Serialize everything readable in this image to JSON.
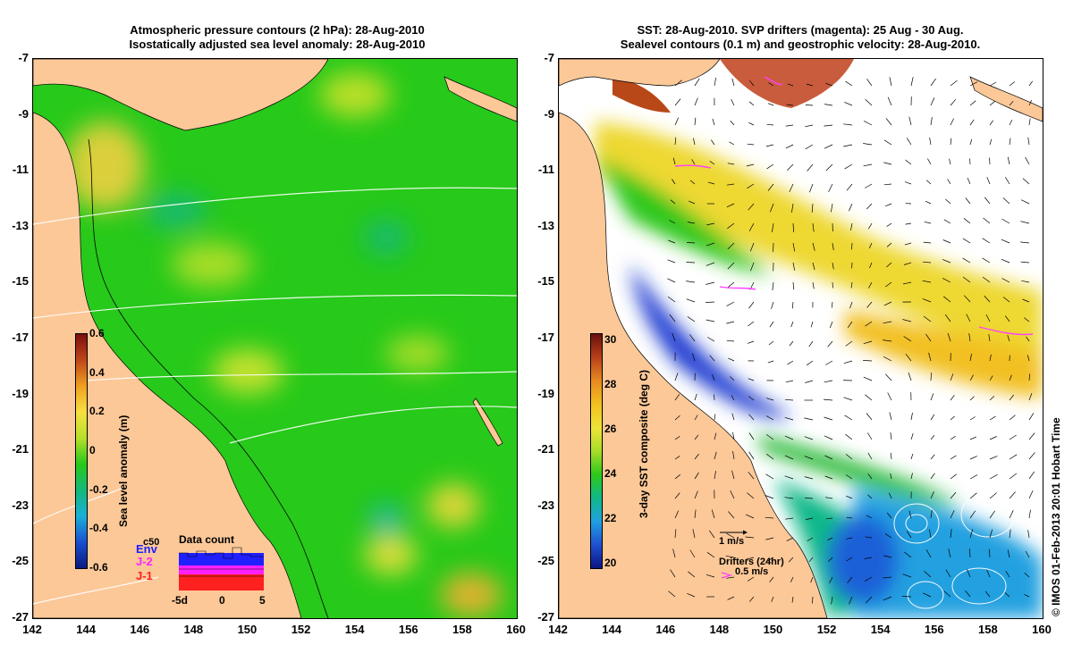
{
  "left_panel": {
    "title_line1": "Atmospheric pressure contours (2 hPa): 28-Aug-2010",
    "title_line2": "Isostatically adjusted sea level anomaly: 28-Aug-2010",
    "colorbar": {
      "label": "Sea level anomaly (m)",
      "ticks": [
        "0.6",
        "0.4",
        "0.2",
        "0",
        "-0.2",
        "-0.4",
        "-0.6"
      ],
      "colors": [
        "#7a0f0f",
        "#c0461a",
        "#f0a020",
        "#f7e040",
        "#b6e02a",
        "#27c91a",
        "#14b87a",
        "#1ab0d8",
        "#1a4fd0",
        "#0a1a80"
      ]
    },
    "data_count": {
      "title": "Data count",
      "series": [
        {
          "name": "Env",
          "color": "#2020ff"
        },
        {
          "name": "J-2",
          "color": "#ff20ff"
        },
        {
          "name": "J-1",
          "color": "#ff2020"
        }
      ],
      "x_ticks": [
        "-5d",
        "0",
        "5"
      ],
      "extra_label": "c50"
    }
  },
  "right_panel": {
    "title_line1": "SST: 28-Aug-2010. SVP drifters (magenta): 25 Aug - 30 Aug.",
    "title_line2": "Sealevel contours (0.1 m) and geostrophic velocity: 28-Aug-2010.",
    "colorbar": {
      "label": "3-day SST composite (deg C)",
      "ticks": [
        "30",
        "28",
        "26",
        "24",
        "22",
        "20"
      ],
      "colors": [
        "#6a1010",
        "#b8401a",
        "#e88a20",
        "#f2c020",
        "#eee438",
        "#a8dc2a",
        "#2ec81a",
        "#10b888",
        "#20a0e0",
        "#2050d0",
        "#0a1480"
      ]
    },
    "velocity_scale_label": "1 m/s",
    "drifters_label": "Drifters (24hr)",
    "drifters_speed_label": "0.5 m/s"
  },
  "axes": {
    "lat_ticks": [
      "-7",
      "-9",
      "-11",
      "-13",
      "-15",
      "-17",
      "-19",
      "-21",
      "-23",
      "-25",
      "-27"
    ],
    "lon_ticks": [
      "142",
      "144",
      "146",
      "148",
      "150",
      "152",
      "154",
      "156",
      "158",
      "160"
    ]
  },
  "copyright": "© IMOS 01-Feb-2013 20:01 Hobart Time",
  "colors": {
    "land": "#fcc898",
    "ocean_green": "#27c91a",
    "clouds": "#ffffff",
    "drifters": "#ff40ff"
  }
}
